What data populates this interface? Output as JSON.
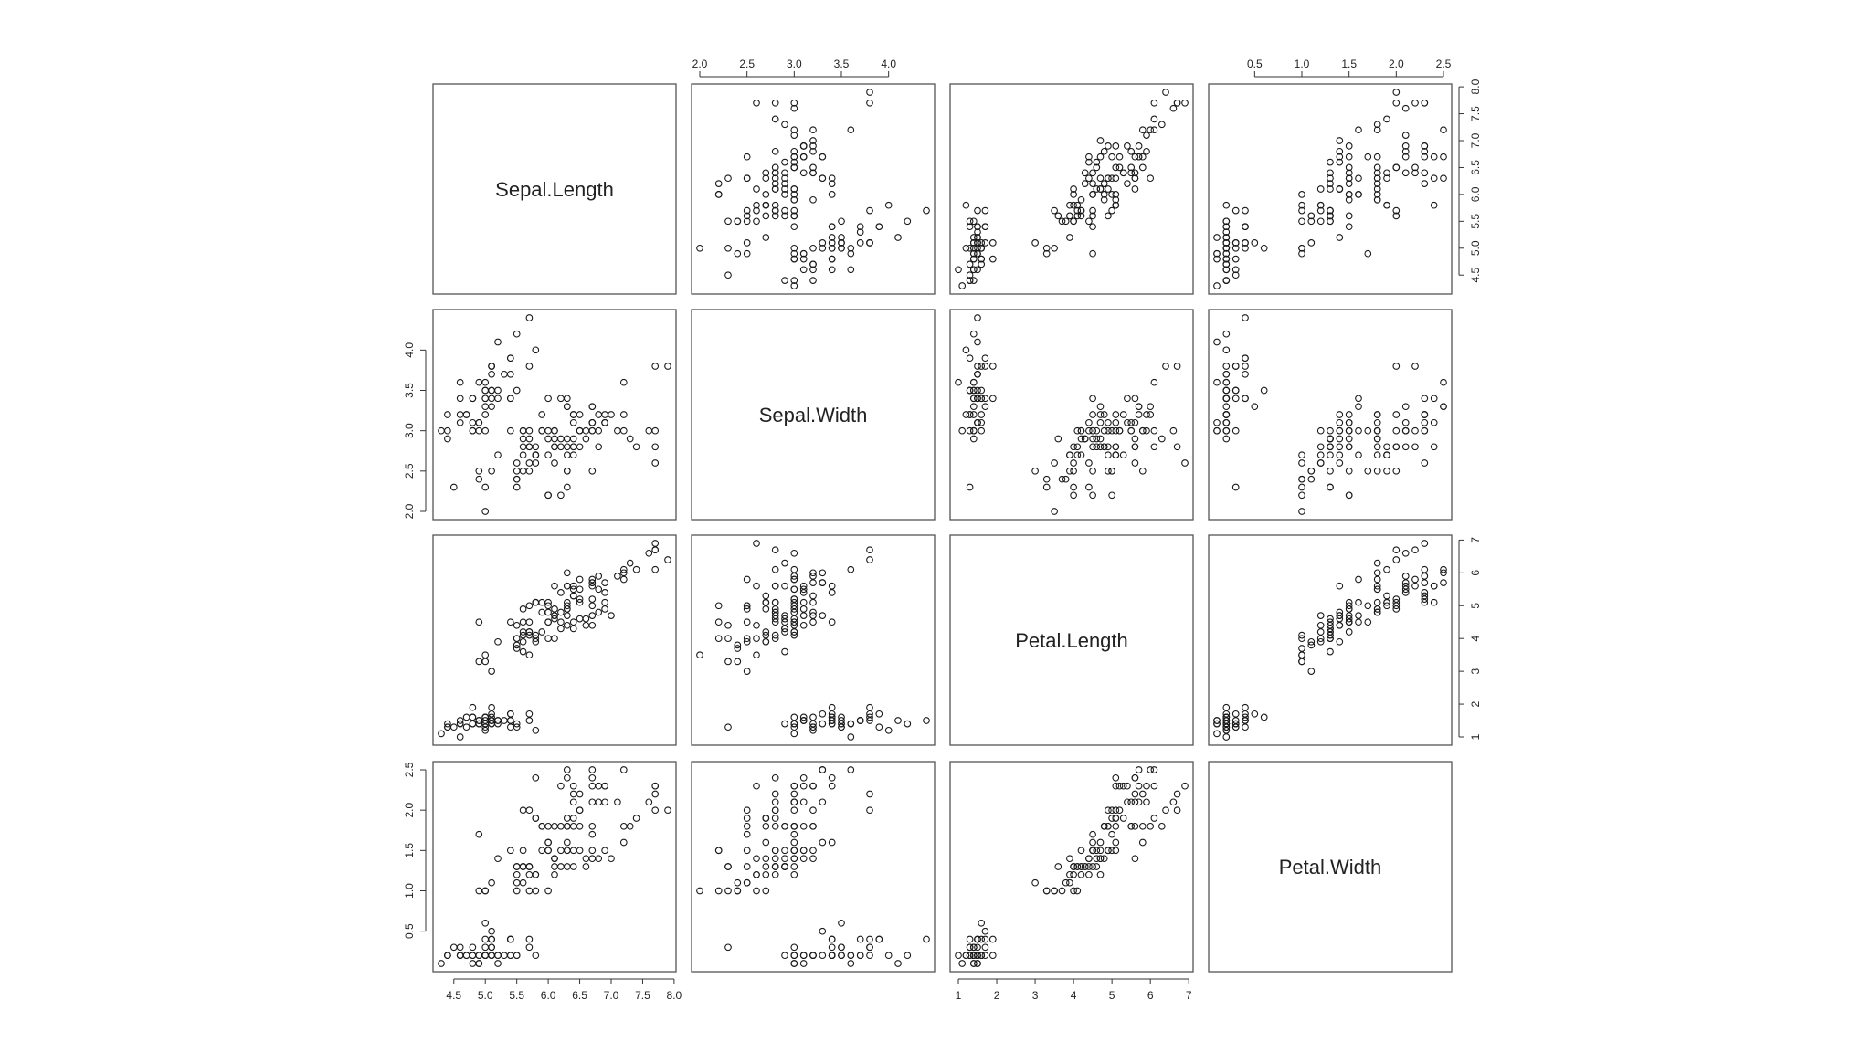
{
  "chart_data": {
    "type": "scatter",
    "variables": [
      "Sepal.Length",
      "Sepal.Width",
      "Petal.Length",
      "Petal.Width"
    ],
    "ranges": [
      [
        4.3,
        7.9
      ],
      [
        2.0,
        4.4
      ],
      [
        1.0,
        6.9
      ],
      [
        0.1,
        2.5
      ]
    ],
    "ticks": [
      [
        "4.5",
        "5.0",
        "5.5",
        "6.0",
        "6.5",
        "7.0",
        "7.5",
        "8.0"
      ],
      [
        "2.0",
        "2.5",
        "3.0",
        "3.5",
        "4.0"
      ],
      [
        "1",
        "2",
        "3",
        "4",
        "5",
        "6",
        "7"
      ],
      [
        "0.5",
        "1.0",
        "1.5",
        "2.0",
        "2.5"
      ]
    ],
    "points": [
      [
        5.1,
        3.5,
        1.4,
        0.2
      ],
      [
        4.9,
        3.0,
        1.4,
        0.2
      ],
      [
        4.7,
        3.2,
        1.3,
        0.2
      ],
      [
        4.6,
        3.1,
        1.5,
        0.2
      ],
      [
        5.0,
        3.6,
        1.4,
        0.2
      ],
      [
        5.4,
        3.9,
        1.7,
        0.4
      ],
      [
        4.6,
        3.4,
        1.4,
        0.3
      ],
      [
        5.0,
        3.4,
        1.5,
        0.2
      ],
      [
        4.4,
        2.9,
        1.4,
        0.2
      ],
      [
        4.9,
        3.1,
        1.5,
        0.1
      ],
      [
        5.4,
        3.7,
        1.5,
        0.2
      ],
      [
        4.8,
        3.4,
        1.6,
        0.2
      ],
      [
        4.8,
        3.0,
        1.4,
        0.1
      ],
      [
        4.3,
        3.0,
        1.1,
        0.1
      ],
      [
        5.8,
        4.0,
        1.2,
        0.2
      ],
      [
        5.7,
        4.4,
        1.5,
        0.4
      ],
      [
        5.4,
        3.9,
        1.3,
        0.4
      ],
      [
        5.1,
        3.5,
        1.4,
        0.3
      ],
      [
        5.7,
        3.8,
        1.7,
        0.3
      ],
      [
        5.1,
        3.8,
        1.5,
        0.3
      ],
      [
        5.4,
        3.4,
        1.7,
        0.2
      ],
      [
        5.1,
        3.7,
        1.5,
        0.4
      ],
      [
        4.6,
        3.6,
        1.0,
        0.2
      ],
      [
        5.1,
        3.3,
        1.7,
        0.5
      ],
      [
        4.8,
        3.4,
        1.9,
        0.2
      ],
      [
        5.0,
        3.0,
        1.6,
        0.2
      ],
      [
        5.0,
        3.4,
        1.6,
        0.4
      ],
      [
        5.2,
        3.5,
        1.5,
        0.2
      ],
      [
        5.2,
        3.4,
        1.4,
        0.2
      ],
      [
        4.7,
        3.2,
        1.6,
        0.2
      ],
      [
        4.8,
        3.1,
        1.6,
        0.2
      ],
      [
        5.4,
        3.4,
        1.5,
        0.4
      ],
      [
        5.2,
        4.1,
        1.5,
        0.1
      ],
      [
        5.5,
        4.2,
        1.4,
        0.2
      ],
      [
        4.9,
        3.1,
        1.5,
        0.2
      ],
      [
        5.0,
        3.2,
        1.2,
        0.2
      ],
      [
        5.5,
        3.5,
        1.3,
        0.2
      ],
      [
        4.9,
        3.6,
        1.4,
        0.1
      ],
      [
        4.4,
        3.0,
        1.3,
        0.2
      ],
      [
        5.1,
        3.4,
        1.5,
        0.2
      ],
      [
        5.0,
        3.5,
        1.3,
        0.3
      ],
      [
        4.5,
        2.3,
        1.3,
        0.3
      ],
      [
        4.4,
        3.2,
        1.3,
        0.2
      ],
      [
        5.0,
        3.5,
        1.6,
        0.6
      ],
      [
        5.1,
        3.8,
        1.9,
        0.4
      ],
      [
        4.8,
        3.0,
        1.4,
        0.3
      ],
      [
        5.1,
        3.8,
        1.6,
        0.2
      ],
      [
        4.6,
        3.2,
        1.4,
        0.2
      ],
      [
        5.3,
        3.7,
        1.5,
        0.2
      ],
      [
        5.0,
        3.3,
        1.4,
        0.2
      ],
      [
        7.0,
        3.2,
        4.7,
        1.4
      ],
      [
        6.4,
        3.2,
        4.5,
        1.5
      ],
      [
        6.9,
        3.1,
        4.9,
        1.5
      ],
      [
        5.5,
        2.3,
        4.0,
        1.3
      ],
      [
        6.5,
        2.8,
        4.6,
        1.5
      ],
      [
        5.7,
        2.8,
        4.5,
        1.3
      ],
      [
        6.3,
        3.3,
        4.7,
        1.6
      ],
      [
        4.9,
        2.4,
        3.3,
        1.0
      ],
      [
        6.6,
        2.9,
        4.6,
        1.3
      ],
      [
        5.2,
        2.7,
        3.9,
        1.4
      ],
      [
        5.0,
        2.0,
        3.5,
        1.0
      ],
      [
        5.9,
        3.0,
        4.2,
        1.5
      ],
      [
        6.0,
        2.2,
        4.0,
        1.0
      ],
      [
        6.1,
        2.9,
        4.7,
        1.4
      ],
      [
        5.6,
        2.9,
        3.6,
        1.3
      ],
      [
        6.7,
        3.1,
        4.4,
        1.4
      ],
      [
        5.6,
        3.0,
        4.5,
        1.5
      ],
      [
        5.8,
        2.7,
        4.1,
        1.0
      ],
      [
        6.2,
        2.2,
        4.5,
        1.5
      ],
      [
        5.6,
        2.5,
        3.9,
        1.1
      ],
      [
        5.9,
        3.2,
        4.8,
        1.8
      ],
      [
        6.1,
        2.8,
        4.0,
        1.3
      ],
      [
        6.3,
        2.5,
        4.9,
        1.5
      ],
      [
        6.1,
        2.8,
        4.7,
        1.2
      ],
      [
        6.4,
        2.9,
        4.3,
        1.3
      ],
      [
        6.6,
        3.0,
        4.4,
        1.4
      ],
      [
        6.8,
        2.8,
        4.8,
        1.4
      ],
      [
        6.7,
        3.0,
        5.0,
        1.7
      ],
      [
        6.0,
        2.9,
        4.5,
        1.5
      ],
      [
        5.7,
        2.6,
        3.5,
        1.0
      ],
      [
        5.5,
        2.4,
        3.8,
        1.1
      ],
      [
        5.5,
        2.4,
        3.7,
        1.0
      ],
      [
        5.8,
        2.7,
        3.9,
        1.2
      ],
      [
        6.0,
        2.7,
        5.1,
        1.6
      ],
      [
        5.4,
        3.0,
        4.5,
        1.5
      ],
      [
        6.0,
        3.4,
        4.5,
        1.6
      ],
      [
        6.7,
        3.1,
        4.7,
        1.5
      ],
      [
        6.3,
        2.3,
        4.4,
        1.3
      ],
      [
        5.6,
        3.0,
        4.1,
        1.3
      ],
      [
        5.5,
        2.5,
        4.0,
        1.3
      ],
      [
        5.5,
        2.6,
        4.4,
        1.2
      ],
      [
        6.1,
        3.0,
        4.6,
        1.4
      ],
      [
        5.8,
        2.6,
        4.0,
        1.2
      ],
      [
        5.0,
        2.3,
        3.3,
        1.0
      ],
      [
        5.6,
        2.7,
        4.2,
        1.3
      ],
      [
        5.7,
        3.0,
        4.2,
        1.2
      ],
      [
        5.7,
        2.9,
        4.2,
        1.3
      ],
      [
        6.2,
        2.9,
        4.3,
        1.3
      ],
      [
        5.1,
        2.5,
        3.0,
        1.1
      ],
      [
        5.7,
        2.8,
        4.1,
        1.3
      ],
      [
        6.3,
        3.3,
        6.0,
        2.5
      ],
      [
        5.8,
        2.7,
        5.1,
        1.9
      ],
      [
        7.1,
        3.0,
        5.9,
        2.1
      ],
      [
        6.3,
        2.9,
        5.6,
        1.8
      ],
      [
        6.5,
        3.0,
        5.8,
        2.2
      ],
      [
        7.6,
        3.0,
        6.6,
        2.1
      ],
      [
        4.9,
        2.5,
        4.5,
        1.7
      ],
      [
        7.3,
        2.9,
        6.3,
        1.8
      ],
      [
        6.7,
        2.5,
        5.8,
        1.8
      ],
      [
        7.2,
        3.6,
        6.1,
        2.5
      ],
      [
        6.5,
        3.2,
        5.1,
        2.0
      ],
      [
        6.4,
        2.7,
        5.3,
        1.9
      ],
      [
        6.8,
        3.0,
        5.5,
        2.1
      ],
      [
        5.7,
        2.5,
        5.0,
        2.0
      ],
      [
        5.8,
        2.8,
        5.1,
        2.4
      ],
      [
        6.4,
        3.2,
        5.3,
        2.3
      ],
      [
        6.5,
        3.0,
        5.5,
        1.8
      ],
      [
        7.7,
        3.8,
        6.7,
        2.2
      ],
      [
        7.7,
        2.6,
        6.9,
        2.3
      ],
      [
        6.0,
        2.2,
        5.0,
        1.5
      ],
      [
        6.9,
        3.2,
        5.7,
        2.3
      ],
      [
        5.6,
        2.8,
        4.9,
        2.0
      ],
      [
        7.7,
        2.8,
        6.7,
        2.0
      ],
      [
        6.3,
        2.7,
        4.9,
        1.8
      ],
      [
        6.7,
        3.3,
        5.7,
        2.1
      ],
      [
        7.2,
        3.2,
        6.0,
        1.8
      ],
      [
        6.2,
        2.8,
        4.8,
        1.8
      ],
      [
        6.1,
        3.0,
        4.9,
        1.8
      ],
      [
        6.4,
        2.8,
        5.6,
        2.1
      ],
      [
        7.2,
        3.0,
        5.8,
        1.6
      ],
      [
        7.4,
        2.8,
        6.1,
        1.9
      ],
      [
        7.9,
        3.8,
        6.4,
        2.0
      ],
      [
        6.4,
        2.8,
        5.6,
        2.2
      ],
      [
        6.3,
        2.8,
        5.1,
        1.5
      ],
      [
        6.1,
        2.6,
        5.6,
        1.4
      ],
      [
        7.7,
        3.0,
        6.1,
        2.3
      ],
      [
        6.3,
        3.4,
        5.6,
        2.4
      ],
      [
        6.4,
        3.1,
        5.5,
        1.8
      ],
      [
        6.0,
        3.0,
        4.8,
        1.8
      ],
      [
        6.9,
        3.1,
        5.4,
        2.1
      ],
      [
        6.7,
        3.1,
        5.6,
        2.4
      ],
      [
        6.9,
        3.1,
        5.1,
        2.3
      ],
      [
        5.8,
        2.7,
        5.1,
        1.9
      ],
      [
        6.8,
        3.2,
        5.9,
        2.3
      ],
      [
        6.7,
        3.3,
        5.7,
        2.5
      ],
      [
        6.7,
        3.0,
        5.2,
        2.3
      ],
      [
        6.3,
        2.5,
        5.0,
        1.9
      ],
      [
        6.5,
        3.0,
        5.2,
        2.0
      ],
      [
        6.2,
        3.4,
        5.4,
        2.3
      ],
      [
        5.9,
        3.0,
        5.1,
        1.8
      ]
    ]
  }
}
